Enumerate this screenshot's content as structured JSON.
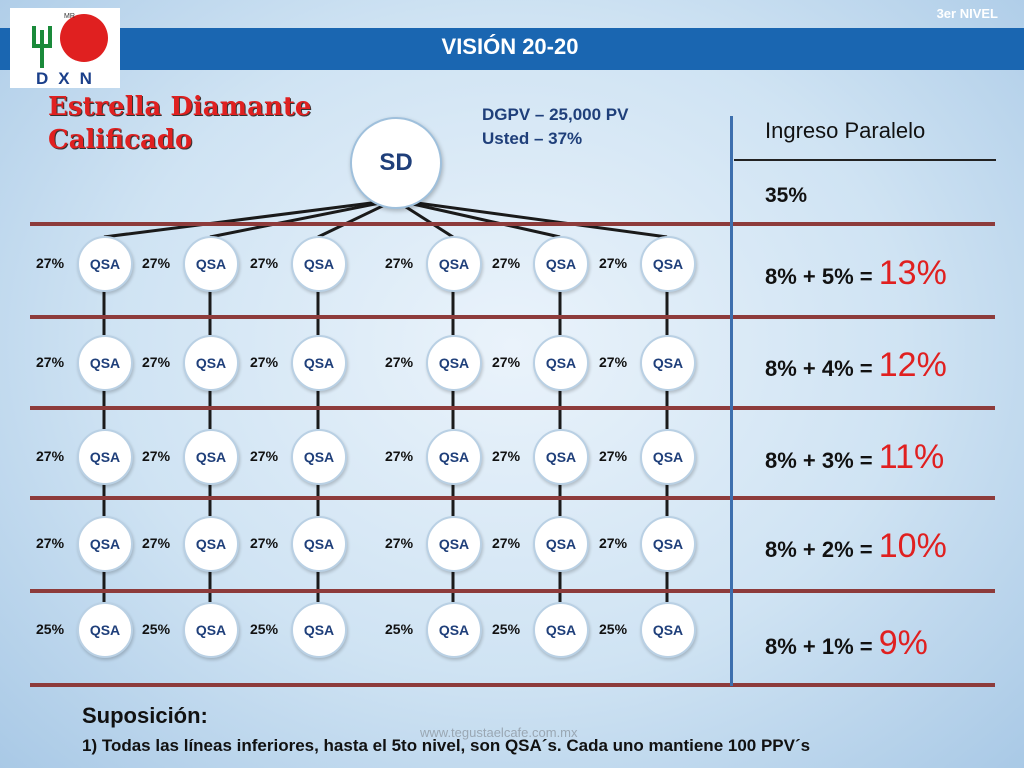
{
  "header": {
    "title": "VISIÓN 20-20",
    "level": "3er NIVEL",
    "logo_text": "DXN",
    "logo_mark": "MR"
  },
  "heading": {
    "line1": "Estrella Diamante",
    "line2": "Calificado"
  },
  "notes": {
    "dgpv": "DGPV – 25,000 PV",
    "usted": "Usted – 37%"
  },
  "tree": {
    "root": "SD",
    "node_label": "QSA",
    "row_percentages": [
      "27%",
      "27%",
      "27%",
      "27%",
      "25%"
    ]
  },
  "parallel": {
    "title": "Ingreso Paralelo",
    "base": "35%",
    "rows": [
      {
        "formula": "8% + 5% = ",
        "result": "13%"
      },
      {
        "formula": "8% + 4% = ",
        "result": "12%"
      },
      {
        "formula": "8% + 3% = ",
        "result": "11%"
      },
      {
        "formula": "8% + 2% = ",
        "result": "10%"
      },
      {
        "formula": "8% + 1% = ",
        "result": "9%"
      }
    ]
  },
  "footer": {
    "heading": "Suposición:",
    "note": "1) Todas las líneas inferiores, hasta el 5to nivel, son QSA´s. Cada uno mantiene 100 PPV´s",
    "watermark": "www.tegustaelcafe.com.mx"
  },
  "colors": {
    "topbar": "#1a66b1",
    "accent_red": "#e02020",
    "node_text": "#1f3f7a",
    "divider": "#8d3b3b"
  }
}
